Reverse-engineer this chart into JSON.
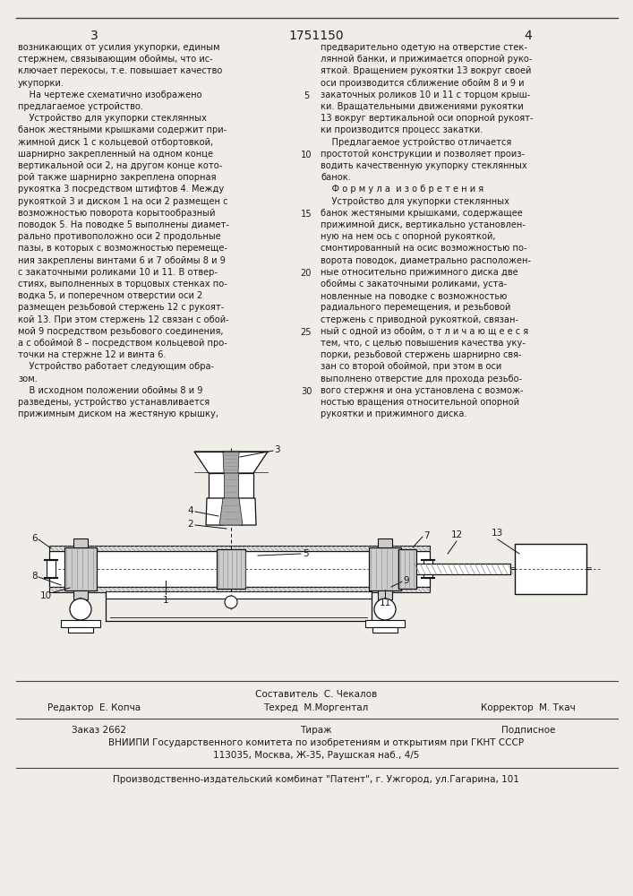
{
  "page_number_left": "3",
  "patent_number": "1751150",
  "page_number_right": "4",
  "col_left_text": [
    "возникающих от усилия укупорки, единым",
    "стержнем, связывающим обоймы, что ис-",
    "ключает перекосы, т.е. повышает качество",
    "укупорки.",
    "    На чертеже схематично изображено",
    "предлагаемое устройство.",
    "    Устройство для укупорки стеклянных",
    "банок жестяными крышками содержит при-",
    "жимной диск 1 с кольцевой отбортовкой,",
    "шарнирно закрепленный на одном конце",
    "вертикальной оси 2, на другом конце кото-",
    "рой также шарнирно закреплена опорная",
    "рукоятка 3 посредством штифтов 4. Между",
    "рукояткой 3 и диском 1 на оси 2 размещен с",
    "возможностью поворота корытообразный",
    "поводок 5. На поводке 5 выполнены диамет-",
    "рально противоположно оси 2 продольные",
    "пазы, в которых с возможностью перемеще-",
    "ния закреплены винтами 6 и 7 обоймы 8 и 9",
    "с закаточными роликами 10 и 11. В отвер-",
    "стиях, выполненных в торцовых стенках по-",
    "водка 5, и поперечном отверстии оси 2",
    "размещен резьбовой стержень 12 с рукоят-",
    "кой 13. При этом стержень 12 связан с обой-",
    "мой 9 посредством резьбового соединения,",
    "а с обоймой 8 – посредством кольцевой про-",
    "точки на стержне 12 и винта 6.",
    "    Устройство работает следующим обра-",
    "зом.",
    "    В исходном положении обоймы 8 и 9",
    "разведены, устройство устанавливается",
    "прижимным диском на жестяную крышку,"
  ],
  "col_right_text": [
    "предварительно одетую на отверстие стек-",
    "лянной банки, и прижимается опорной руко-",
    "яткой. Вращением рукоятки 13 вокруг своей",
    "оси производится сближение обойм 8 и 9 и",
    "закаточных роликов 10 и 11 с торцом крыш-",
    "ки. Вращательными движениями рукоятки",
    "13 вокруг вертикальной оси опорной рукоят-",
    "ки производится процесс закатки.",
    "    Предлагаемое устройство отличается",
    "простотой конструкции и позволяет произ-",
    "водить качественную укупорку стеклянных",
    "банок.",
    "    Ф о р м у л а  и з о б р е т е н и я",
    "    Устройство для укупорки стеклянных",
    "банок жестяными крышками, содержащее",
    "прижимной диск, вертикально установлен-",
    "ную на нем ось с опорной рукояткой,",
    "смонтированный на осис возможностью по-",
    "ворота поводок, диаметрально расположен-",
    "ные относительно прижимного диска две",
    "обоймы с закаточными роликами, уста-",
    "новленные на поводке с возможностью",
    "радиального перемещения, и резьбовой",
    "стержень с приводной рукояткой, связан-",
    "ный с одной из обойм, о т л и ч а ю щ е е с я",
    "тем, что, с целью повышения качества уку-",
    "порки, резьбовой стержень шарнирно свя-",
    "зан со второй обоймой, при этом в оси",
    "выполнено отверстие для прохода резьбо-",
    "вого стержня и она установлена с возмож-",
    "ностью вращения относительной опорной",
    "рукоятки и прижимного диска."
  ],
  "line_numbers": [
    5,
    10,
    15,
    20,
    25,
    30
  ],
  "line_number_rows": [
    4,
    9,
    14,
    19,
    24,
    29
  ],
  "editor_line": "Редактор  Е. Копча",
  "composer_line": "Составитель  С. Чекалов",
  "techred_line": "Техред  М.Моргентал",
  "corrector_line": "Корректор  М. Ткач",
  "order_line": "Заказ 2662",
  "tirazh_line": "Тираж",
  "podpisnoe_line": "Подписное",
  "vniipи_line": "ВНИИПИ Государственного комитета по изобретениям и открытиям при ГКНТ СССР",
  "address_line": "113035, Москва, Ж-35, Раушская наб., 4/5",
  "publisher_line": "Производственно-издательский комбинат \"Патент\", г. Ужгород, ул.Гагарина, 101",
  "bg_color": "#f0ede8",
  "text_color": "#1a1a1a",
  "border_color": "#444444",
  "line_color": "#111111",
  "hatch_color": "#888888",
  "fill_color": "#cccccc"
}
